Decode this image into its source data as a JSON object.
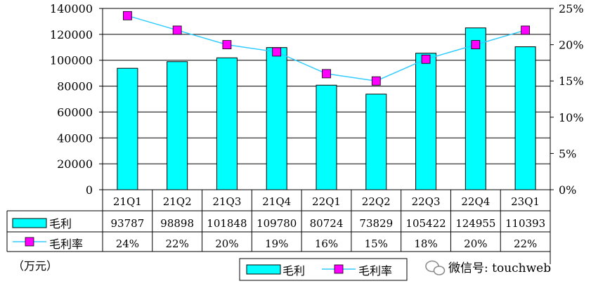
{
  "chart_data": {
    "type": "bar",
    "categories": [
      "21Q1",
      "21Q2",
      "21Q3",
      "21Q4",
      "22Q1",
      "22Q2",
      "22Q3",
      "22Q4",
      "23Q1"
    ],
    "series": [
      {
        "name": "毛利",
        "type": "bar",
        "axis": "left",
        "values": [
          93787,
          98898,
          101848,
          109780,
          80724,
          73829,
          105422,
          124955,
          110393
        ]
      },
      {
        "name": "毛利率",
        "type": "line",
        "axis": "right",
        "values": [
          24,
          22,
          20,
          19,
          16,
          15,
          18,
          20,
          22
        ],
        "labels": [
          "24%",
          "22%",
          "20%",
          "19%",
          "16%",
          "15%",
          "18%",
          "20%",
          "22%"
        ]
      }
    ],
    "y_left": {
      "ylim": [
        0,
        140000
      ],
      "ticks": [
        "0",
        "20000",
        "40000",
        "60000",
        "80000",
        "100000",
        "120000",
        "140000"
      ]
    },
    "y_right": {
      "ylim": [
        0,
        25
      ],
      "ticks": [
        "0%",
        "5%",
        "10%",
        "15%",
        "20%",
        "25%"
      ]
    },
    "unit_label": "（万元）",
    "legend": {
      "placement": "bottom",
      "items": [
        "毛利",
        "毛利率"
      ]
    },
    "grid": true,
    "data_table": true,
    "colors": {
      "bar": "#00FFFF",
      "bar_edge": "#000000",
      "line": "#33CCFF",
      "marker": "#FF00FF",
      "grid": "#000000"
    }
  },
  "watermark": {
    "text": "微信号: touchweb",
    "icon": "wechat-icon"
  }
}
